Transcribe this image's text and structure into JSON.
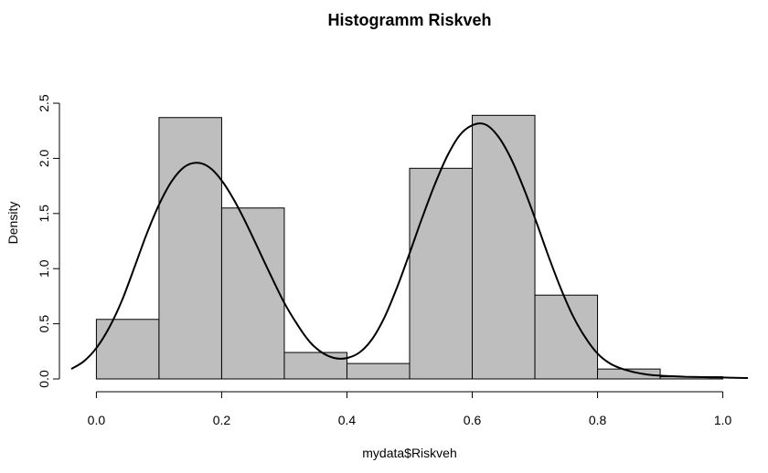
{
  "chart_data": {
    "type": "bar",
    "title": "Histogramm Riskveh",
    "xlabel": "mydata$Riskveh",
    "ylabel": "Density",
    "xlim": [
      -0.04,
      1.04
    ],
    "ylim": [
      0,
      2.55
    ],
    "x_ticks": [
      "0.0",
      "0.2",
      "0.4",
      "0.6",
      "0.8",
      "1.0"
    ],
    "y_ticks": [
      "0.0",
      "0.5",
      "1.0",
      "1.5",
      "2.0",
      "2.5"
    ],
    "grid": false,
    "bins": [
      {
        "x0": 0.0,
        "x1": 0.1,
        "density": 0.54
      },
      {
        "x0": 0.1,
        "x1": 0.2,
        "density": 2.37
      },
      {
        "x0": 0.2,
        "x1": 0.3,
        "density": 1.55
      },
      {
        "x0": 0.3,
        "x1": 0.4,
        "density": 0.24
      },
      {
        "x0": 0.4,
        "x1": 0.5,
        "density": 0.14
      },
      {
        "x0": 0.5,
        "x1": 0.6,
        "density": 1.91
      },
      {
        "x0": 0.6,
        "x1": 0.7,
        "density": 2.39
      },
      {
        "x0": 0.7,
        "x1": 0.8,
        "density": 0.76
      },
      {
        "x0": 0.8,
        "x1": 0.9,
        "density": 0.09
      },
      {
        "x0": 0.9,
        "x1": 1.0,
        "density": 0.02
      }
    ],
    "density_curve": {
      "x": [
        -0.04,
        -0.02,
        0.0,
        0.02,
        0.04,
        0.06,
        0.08,
        0.1,
        0.12,
        0.14,
        0.16,
        0.18,
        0.2,
        0.22,
        0.24,
        0.26,
        0.28,
        0.3,
        0.32,
        0.34,
        0.36,
        0.38,
        0.4,
        0.42,
        0.44,
        0.46,
        0.48,
        0.5,
        0.52,
        0.54,
        0.56,
        0.58,
        0.6,
        0.62,
        0.64,
        0.66,
        0.68,
        0.7,
        0.72,
        0.74,
        0.76,
        0.78,
        0.8,
        0.82,
        0.84,
        0.86,
        0.88,
        0.9,
        0.92,
        0.94,
        0.96,
        0.98,
        1.0,
        1.02,
        1.04
      ],
      "y": [
        0.09,
        0.16,
        0.28,
        0.46,
        0.7,
        1.0,
        1.31,
        1.58,
        1.79,
        1.92,
        1.96,
        1.92,
        1.8,
        1.62,
        1.4,
        1.16,
        0.92,
        0.69,
        0.5,
        0.34,
        0.24,
        0.19,
        0.19,
        0.24,
        0.36,
        0.56,
        0.83,
        1.14,
        1.46,
        1.76,
        2.02,
        2.21,
        2.3,
        2.31,
        2.21,
        2.02,
        1.76,
        1.46,
        1.14,
        0.84,
        0.58,
        0.38,
        0.23,
        0.14,
        0.09,
        0.06,
        0.04,
        0.03,
        0.025,
        0.02,
        0.017,
        0.015,
        0.013,
        0.01,
        0.008
      ]
    }
  }
}
